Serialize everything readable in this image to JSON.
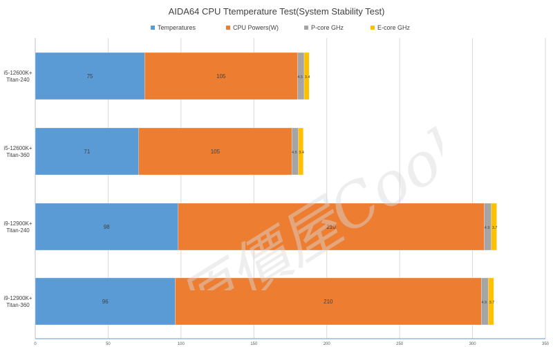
{
  "chart_data": {
    "type": "bar",
    "orientation": "horizontal",
    "stacked": true,
    "title": "AIDA64 CPU Ttemperature Test(System Stability Test)",
    "categories": [
      "i5-12600K+\nTitan-240",
      "i5-12600K+\nTitan-360",
      "i9-12900K+\nTitan-240",
      "i9-12900K+\nTitan-360"
    ],
    "series": [
      {
        "name": "Temperatures",
        "values": [
          75,
          71,
          98,
          96
        ],
        "labels": [
          "75",
          "71",
          "98",
          "96"
        ]
      },
      {
        "name": "CPU Powers(W)",
        "values": [
          105,
          105,
          210,
          210
        ],
        "labels": [
          "105",
          "105",
          "210",
          "210"
        ]
      },
      {
        "name": "P-core GHz",
        "values": [
          4.5,
          4.5,
          4.9,
          4.9
        ],
        "labels": [
          "4.5",
          "4.5",
          "4.9",
          "4.9"
        ]
      },
      {
        "name": "E-core GHz",
        "values": [
          3.4,
          3.4,
          3.7,
          3.7
        ],
        "labels": [
          "3.4",
          "3.4",
          "3.7",
          "3.7"
        ]
      }
    ],
    "xlim": [
      0,
      350
    ],
    "xticks": [
      "0",
      "50",
      "100",
      "150",
      "200",
      "250",
      "300",
      "350"
    ],
    "grid": true,
    "legend_position": "top",
    "colors": [
      "#5b9bd5",
      "#ed7d31",
      "#a5a5a5",
      "#ffc000"
    ]
  },
  "watermark": {
    "text": "原價屋Coolpc"
  }
}
